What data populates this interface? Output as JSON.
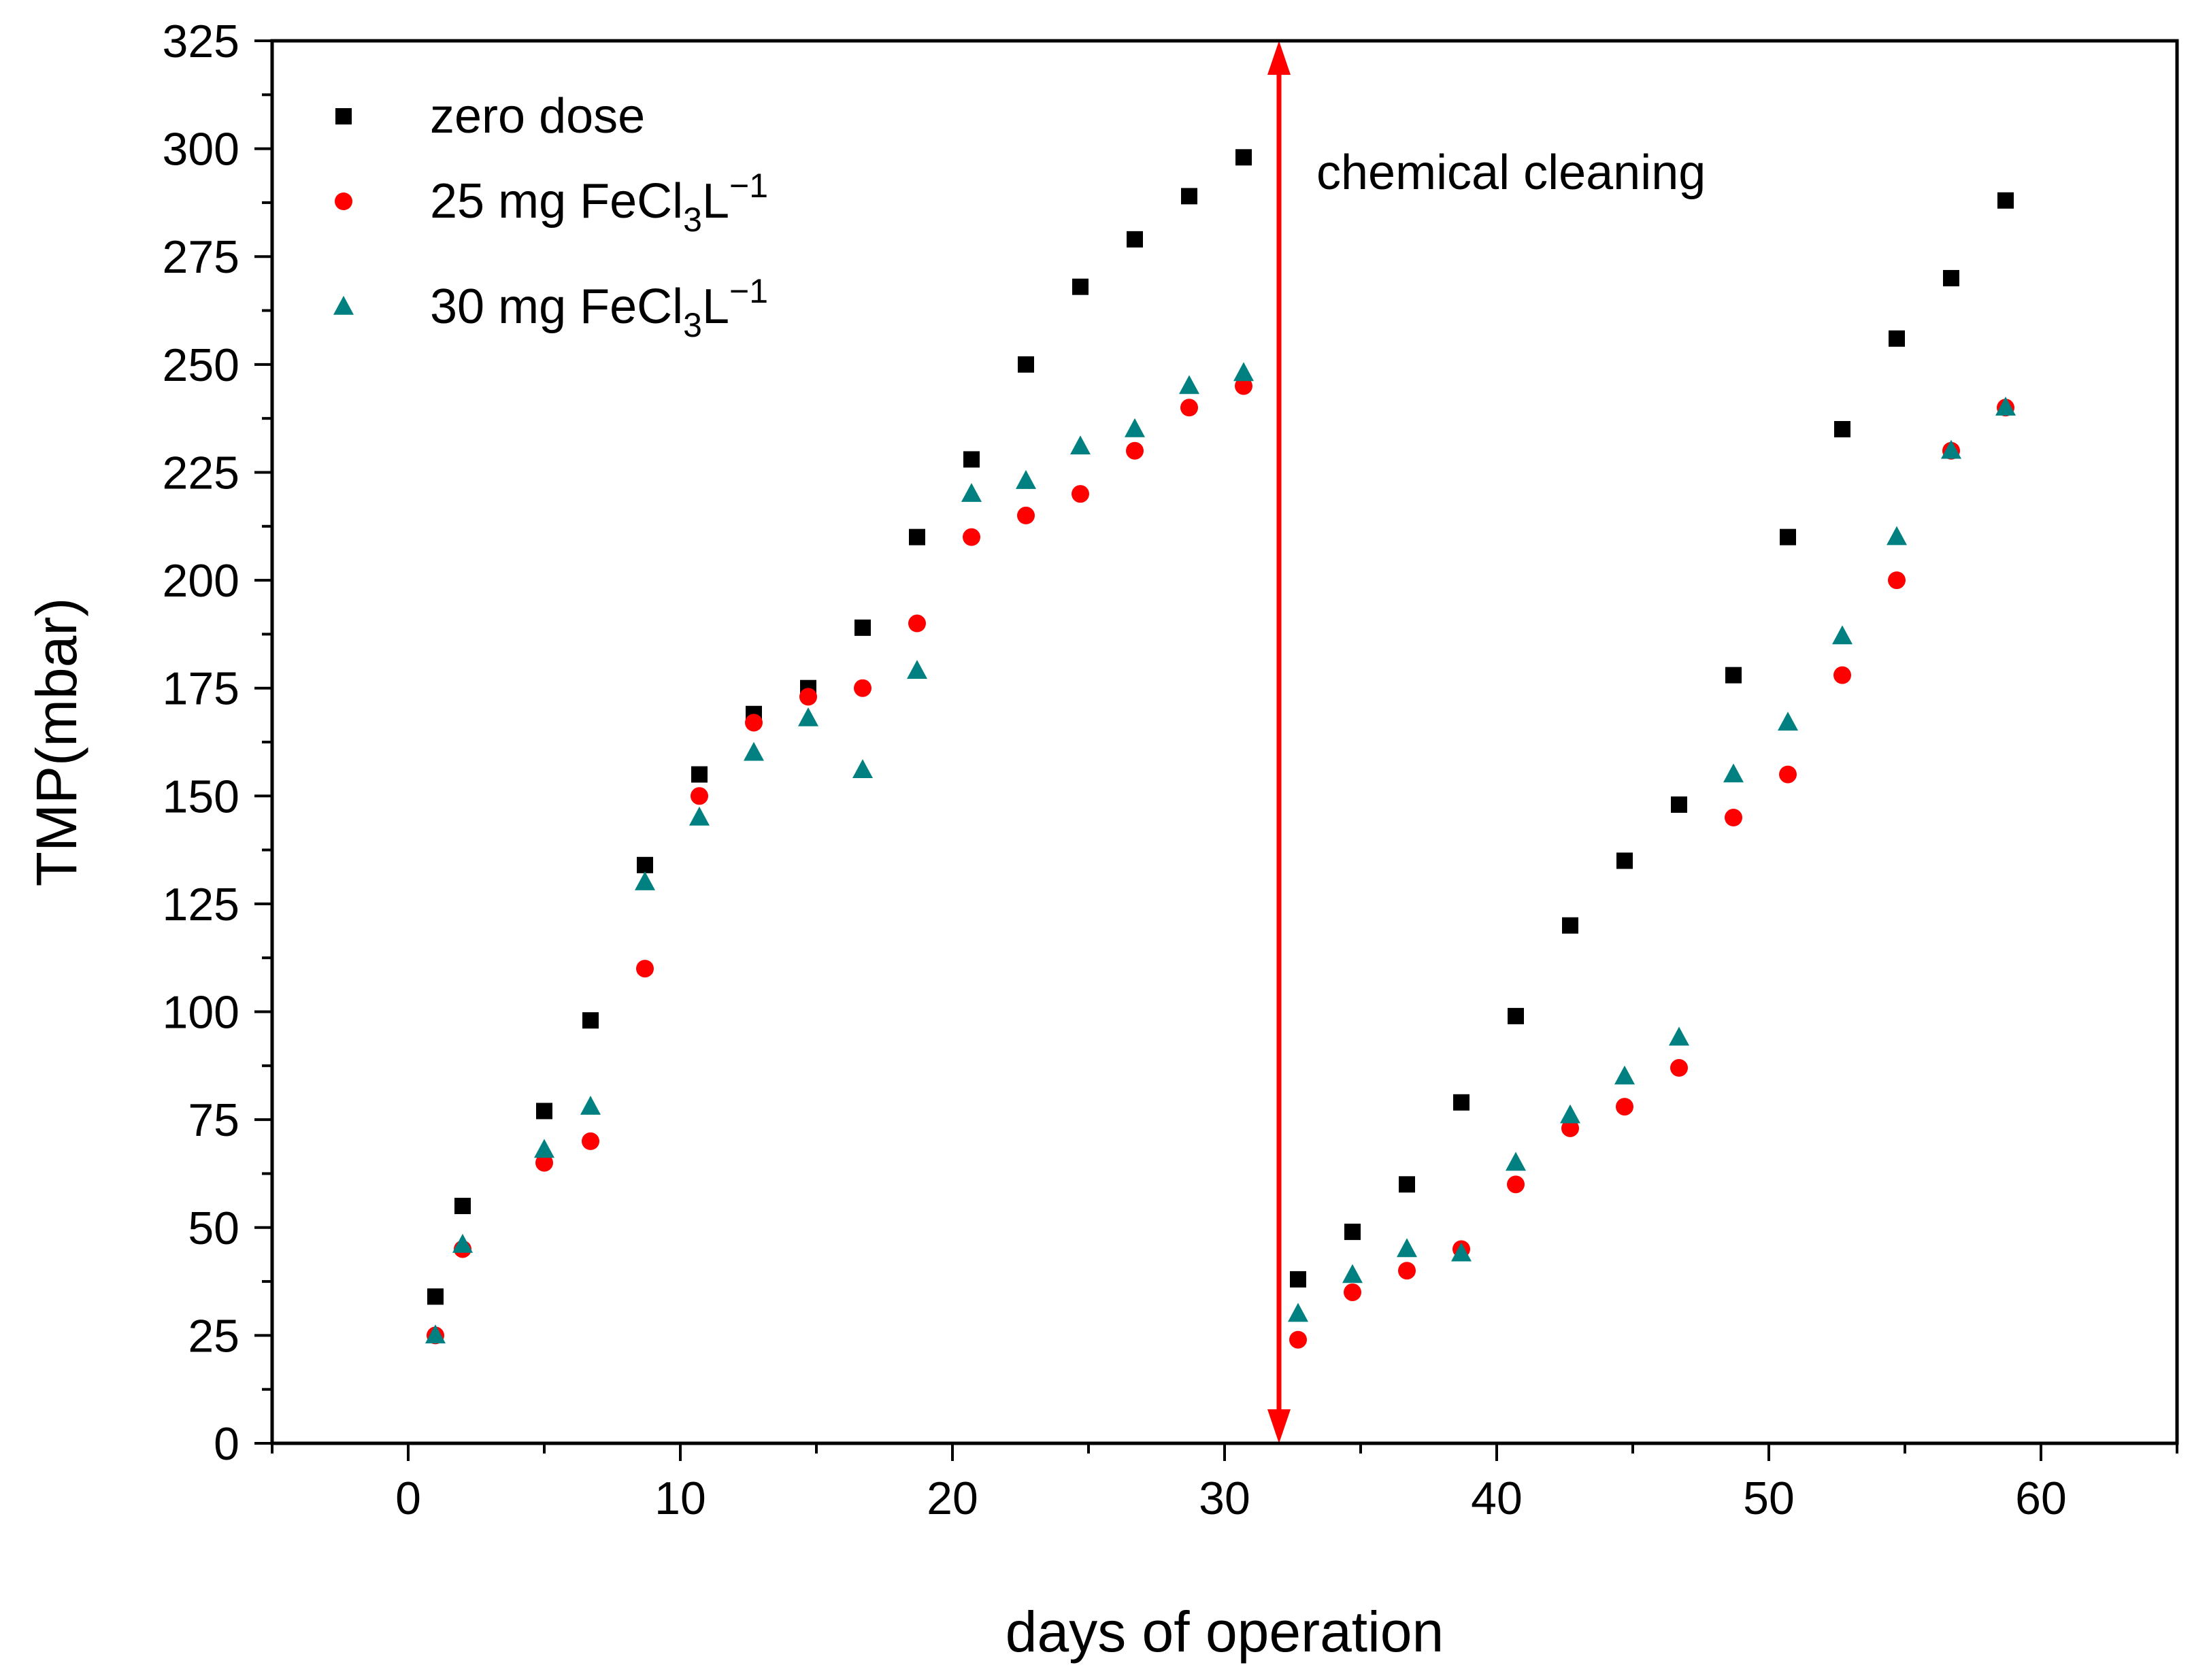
{
  "chart_data": {
    "type": "scatter",
    "title": "",
    "xlabel": "days of operation",
    "ylabel": "TMP(mbar)",
    "xlim": [
      -5,
      65
    ],
    "ylim": [
      0,
      325
    ],
    "xticks": [
      0,
      10,
      20,
      30,
      40,
      50,
      60
    ],
    "xtick_labels": [
      "0",
      "10",
      "20",
      "30",
      "40",
      "50",
      "60"
    ],
    "yticks": [
      0,
      25,
      50,
      75,
      100,
      125,
      150,
      175,
      200,
      225,
      250,
      275,
      300,
      325
    ],
    "ytick_labels": [
      "0",
      "25",
      "50",
      "75",
      "100",
      "125",
      "150",
      "175",
      "200",
      "225",
      "250",
      "275",
      "300",
      "325"
    ],
    "grid": false,
    "legend_position": "top-left",
    "series": [
      {
        "name": "zero dose",
        "legend": {
          "prefix": "zero dose",
          "sub": "",
          "mid": "",
          "sup": ""
        },
        "marker": "square",
        "color": "#000000",
        "points": [
          [
            1,
            34
          ],
          [
            2,
            55
          ],
          [
            5,
            77
          ],
          [
            6.7,
            98
          ],
          [
            8.7,
            134
          ],
          [
            10.7,
            155
          ],
          [
            12.7,
            169
          ],
          [
            14.7,
            175
          ],
          [
            16.7,
            189
          ],
          [
            18.7,
            210
          ],
          [
            20.7,
            228
          ],
          [
            22.7,
            250
          ],
          [
            24.7,
            268
          ],
          [
            26.7,
            279
          ],
          [
            28.7,
            289
          ],
          [
            30.7,
            298
          ],
          [
            32.7,
            38
          ],
          [
            34.7,
            49
          ],
          [
            36.7,
            60
          ],
          [
            38.7,
            79
          ],
          [
            40.7,
            99
          ],
          [
            42.7,
            120
          ],
          [
            44.7,
            135
          ],
          [
            46.7,
            148
          ],
          [
            48.7,
            178
          ],
          [
            50.7,
            210
          ],
          [
            52.7,
            235
          ],
          [
            54.7,
            256
          ],
          [
            56.7,
            270
          ],
          [
            58.7,
            288
          ]
        ]
      },
      {
        "name": "25 mg FeCl3L-1",
        "legend": {
          "prefix": "25 mg FeCl",
          "sub": "3",
          "mid": "L",
          "sup": "−1"
        },
        "marker": "circle",
        "color": "#ff0000",
        "points": [
          [
            1,
            25
          ],
          [
            2,
            45
          ],
          [
            5,
            65
          ],
          [
            6.7,
            70
          ],
          [
            8.7,
            110
          ],
          [
            10.7,
            150
          ],
          [
            12.7,
            167
          ],
          [
            14.7,
            173
          ],
          [
            16.7,
            175
          ],
          [
            18.7,
            190
          ],
          [
            20.7,
            210
          ],
          [
            22.7,
            215
          ],
          [
            24.7,
            220
          ],
          [
            26.7,
            230
          ],
          [
            28.7,
            240
          ],
          [
            30.7,
            245
          ],
          [
            32.7,
            24
          ],
          [
            34.7,
            35
          ],
          [
            36.7,
            40
          ],
          [
            38.7,
            45
          ],
          [
            40.7,
            60
          ],
          [
            42.7,
            73
          ],
          [
            44.7,
            78
          ],
          [
            46.7,
            87
          ],
          [
            48.7,
            145
          ],
          [
            50.7,
            155
          ],
          [
            52.7,
            178
          ],
          [
            54.7,
            200
          ],
          [
            56.7,
            230
          ],
          [
            58.7,
            240
          ]
        ]
      },
      {
        "name": "30 mg FeCl3L-1",
        "legend": {
          "prefix": "30 mg FeCl",
          "sub": "3",
          "mid": "L",
          "sup": "−1"
        },
        "marker": "triangle",
        "color": "#008080",
        "points": [
          [
            1,
            25
          ],
          [
            2,
            46
          ],
          [
            5,
            68
          ],
          [
            6.7,
            78
          ],
          [
            8.7,
            130
          ],
          [
            10.7,
            145
          ],
          [
            12.7,
            160
          ],
          [
            14.7,
            168
          ],
          [
            16.7,
            156
          ],
          [
            18.7,
            179
          ],
          [
            20.7,
            220
          ],
          [
            22.7,
            223
          ],
          [
            24.7,
            231
          ],
          [
            26.7,
            235
          ],
          [
            28.7,
            245
          ],
          [
            30.7,
            248
          ],
          [
            32.7,
            30
          ],
          [
            34.7,
            39
          ],
          [
            36.7,
            45
          ],
          [
            38.7,
            44
          ],
          [
            40.7,
            65
          ],
          [
            42.7,
            76
          ],
          [
            44.7,
            85
          ],
          [
            46.7,
            94
          ],
          [
            48.7,
            155
          ],
          [
            50.7,
            167
          ],
          [
            52.7,
            187
          ],
          [
            54.7,
            210
          ],
          [
            56.7,
            230
          ],
          [
            58.7,
            240
          ]
        ]
      }
    ],
    "annotation": {
      "text": "chemical cleaning",
      "arrow_x": 32,
      "arrow_y_from": 0,
      "arrow_y_to": 325,
      "color": "#ff0000"
    }
  }
}
